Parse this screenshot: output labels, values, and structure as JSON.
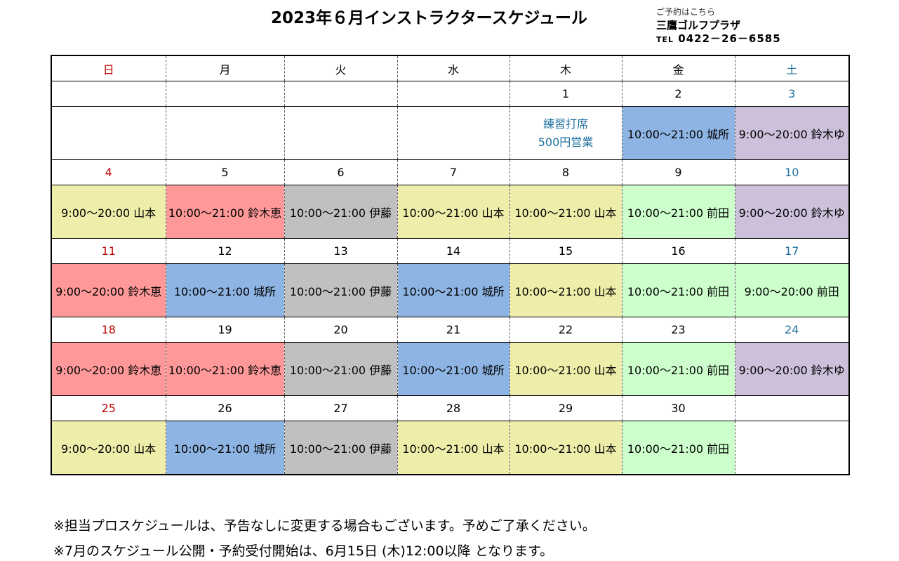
{
  "title": "2023年６月インストラクタースケジュール",
  "contact": {
    "line1": "ご予約はこちら",
    "line2": "三鷹ゴルフプラザ",
    "tel_prefix": "TEL",
    "tel_number": "0422－26－6585"
  },
  "weekdays": [
    {
      "label": "日",
      "tone": "red"
    },
    {
      "label": "月",
      "tone": ""
    },
    {
      "label": "火",
      "tone": ""
    },
    {
      "label": "水",
      "tone": ""
    },
    {
      "label": "木",
      "tone": ""
    },
    {
      "label": "金",
      "tone": ""
    },
    {
      "label": "土",
      "tone": "blue"
    }
  ],
  "weeks": [
    {
      "dates": [
        "",
        "",
        "",
        "",
        "1",
        "2",
        "3"
      ],
      "entries": [
        {
          "text": "",
          "color": "#ffffff"
        },
        {
          "text": "",
          "color": "#ffffff"
        },
        {
          "text": "",
          "color": "#ffffff"
        },
        {
          "text": "",
          "color": "#ffffff"
        },
        {
          "text": "練習打席\n500円営業",
          "color": "#ffffff",
          "note": true
        },
        {
          "text": "10:00～21:00 城所",
          "color": "#8eb4e3"
        },
        {
          "text": "9:00～20:00 鈴木ゆ",
          "color": "#ccc0da"
        }
      ]
    },
    {
      "dates": [
        "4",
        "5",
        "6",
        "7",
        "8",
        "9",
        "10"
      ],
      "entries": [
        {
          "text": "9:00～20:00 山本",
          "color": "#eeeeaa"
        },
        {
          "text": "10:00～21:00 鈴木恵",
          "color": "#ff9999"
        },
        {
          "text": "10:00～21:00 伊藤",
          "color": "#c0c0c0"
        },
        {
          "text": "10:00～21:00 山本",
          "color": "#eeeeaa"
        },
        {
          "text": "10:00～21:00 山本",
          "color": "#eeeeaa"
        },
        {
          "text": "10:00～21:00 前田",
          "color": "#ccffcc"
        },
        {
          "text": "9:00～20:00 鈴木ゆ",
          "color": "#ccc0da"
        }
      ]
    },
    {
      "dates": [
        "11",
        "12",
        "13",
        "14",
        "15",
        "16",
        "17"
      ],
      "entries": [
        {
          "text": "9:00～20:00 鈴木恵",
          "color": "#ff9999"
        },
        {
          "text": "10:00～21:00 城所",
          "color": "#8eb4e3"
        },
        {
          "text": "10:00～21:00 伊藤",
          "color": "#c0c0c0"
        },
        {
          "text": "10:00～21:00 城所",
          "color": "#8eb4e3"
        },
        {
          "text": "10:00～21:00 山本",
          "color": "#eeeeaa"
        },
        {
          "text": "10:00～21:00 前田",
          "color": "#ccffcc"
        },
        {
          "text": "9:00～20:00 前田",
          "color": "#ccffcc"
        }
      ]
    },
    {
      "dates": [
        "18",
        "19",
        "20",
        "21",
        "22",
        "23",
        "24"
      ],
      "entries": [
        {
          "text": "9:00～20:00 鈴木恵",
          "color": "#ff9999"
        },
        {
          "text": "10:00～21:00 鈴木恵",
          "color": "#ff9999"
        },
        {
          "text": "10:00～21:00 伊藤",
          "color": "#c0c0c0"
        },
        {
          "text": "10:00～21:00 城所",
          "color": "#8eb4e3"
        },
        {
          "text": "10:00～21:00 山本",
          "color": "#eeeeaa"
        },
        {
          "text": "10:00～21:00 前田",
          "color": "#ccffcc"
        },
        {
          "text": "9:00～20:00 鈴木ゆ",
          "color": "#ccc0da"
        }
      ]
    },
    {
      "dates": [
        "25",
        "26",
        "27",
        "28",
        "29",
        "30",
        ""
      ],
      "entries": [
        {
          "text": "9:00～20:00 山本",
          "color": "#eeeeaa"
        },
        {
          "text": "10:00～21:00 城所",
          "color": "#8eb4e3"
        },
        {
          "text": "10:00～21:00 伊藤",
          "color": "#c0c0c0"
        },
        {
          "text": "10:00～21:00 山本",
          "color": "#eeeeaa"
        },
        {
          "text": "10:00～21:00 山本",
          "color": "#eeeeaa"
        },
        {
          "text": "10:00～21:00 前田",
          "color": "#ccffcc"
        },
        {
          "text": "",
          "color": "#ffffff"
        }
      ]
    }
  ],
  "footer": [
    "※担当プロスケジュールは、予告なしに変更する場合もございます。予めご了承ください。",
    "※7月のスケジュール公開・予約受付開始は、6月15日 (木)12:00以降 となります。"
  ]
}
